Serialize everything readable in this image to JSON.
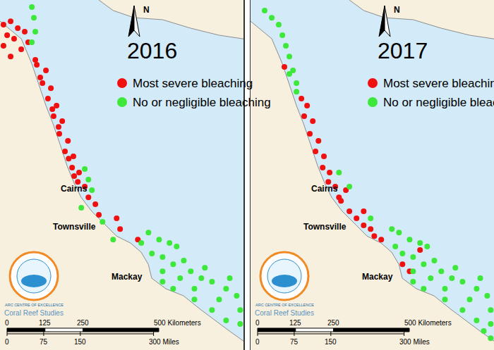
{
  "chart_data": [
    {
      "type": "scatter",
      "title": "2016",
      "xlim": [
        141,
        154.3
      ],
      "ylim": [
        -24.2,
        -8.2
      ],
      "tick_labels": false,
      "grid": false,
      "series": [
        {
          "name": "Most severe bleaching",
          "color": "#f01010",
          "marker": "circle",
          "points": [
            [
              141.19,
              -9.33
            ],
            [
              141.58,
              -9.17
            ],
            [
              141.97,
              -9.49
            ],
            [
              141.39,
              -9.81
            ],
            [
              141.77,
              -9.97
            ],
            [
              142.35,
              -9.65
            ],
            [
              141.19,
              -10.29
            ],
            [
              142.16,
              -10.45
            ],
            [
              142.54,
              -10.13
            ],
            [
              141.58,
              -10.78
            ],
            [
              142.93,
              -10.94
            ],
            [
              143.01,
              -11.16
            ],
            [
              143.51,
              -11.42
            ],
            [
              143.2,
              -11.74
            ],
            [
              143.32,
              -12.0
            ],
            [
              143.78,
              -12.23
            ],
            [
              143.62,
              -12.71
            ],
            [
              144.09,
              -13.03
            ],
            [
              143.86,
              -13.19
            ],
            [
              143.93,
              -13.51
            ],
            [
              144.4,
              -13.74
            ],
            [
              144.2,
              -14.0
            ],
            [
              144.24,
              -14.32
            ],
            [
              144.71,
              -14.64
            ],
            [
              144.55,
              -15.12
            ],
            [
              145.01,
              -15.35
            ],
            [
              144.75,
              -15.45
            ],
            [
              144.94,
              -15.86
            ],
            [
              145.32,
              -16.09
            ],
            [
              145.05,
              -16.25
            ],
            [
              145.25,
              -16.51
            ],
            [
              145.63,
              -16.73
            ],
            [
              145.83,
              -17.22
            ],
            [
              146.21,
              -17.54
            ],
            [
              146.4,
              -18.02
            ],
            [
              147.37,
              -18.18
            ],
            [
              147.56,
              -18.67
            ],
            [
              148.53,
              -19.15
            ]
          ]
        },
        {
          "name": "No or negligible bleaching",
          "color": "#3ee83a",
          "marker": "circle",
          "points": [
            [
              142.74,
              -8.52
            ],
            [
              142.85,
              -9.01
            ],
            [
              142.93,
              -9.65
            ],
            [
              142.74,
              -10.13
            ],
            [
              145.63,
              -15.93
            ],
            [
              145.83,
              -16.41
            ],
            [
              146.02,
              -16.89
            ],
            [
              145.44,
              -17.7
            ],
            [
              146.6,
              -18.34
            ],
            [
              147.18,
              -19.15
            ],
            [
              148.72,
              -19.31
            ],
            [
              149.11,
              -18.83
            ],
            [
              149.69,
              -19.15
            ],
            [
              150.26,
              -19.31
            ],
            [
              150.65,
              -19.47
            ],
            [
              149.3,
              -19.79
            ],
            [
              149.88,
              -19.95
            ],
            [
              150.46,
              -20.28
            ],
            [
              151.04,
              -20.11
            ],
            [
              151.42,
              -20.6
            ],
            [
              152.0,
              -20.92
            ],
            [
              152.58,
              -21.08
            ],
            [
              153.35,
              -21.4
            ],
            [
              153.93,
              -21.72
            ],
            [
              149.88,
              -21.08
            ],
            [
              150.46,
              -21.4
            ],
            [
              151.62,
              -21.89
            ],
            [
              152.58,
              -22.37
            ],
            [
              153.35,
              -22.85
            ],
            [
              154.12,
              -23.01
            ],
            [
              154.12,
              -22.37
            ],
            [
              152.97,
              -21.89
            ],
            [
              151.62,
              -21.4
            ],
            [
              150.84,
              -20.92
            ],
            [
              152.19,
              -20.44
            ],
            [
              153.55,
              -20.92
            ],
            [
              149.88,
              -20.6
            ]
          ]
        }
      ],
      "annotations": [
        {
          "text": "Cairns",
          "x": 145.05,
          "y": -16.83
        },
        {
          "text": "Townsville",
          "x": 145.05,
          "y": -18.57
        },
        {
          "text": "Mackay",
          "x": 147.94,
          "y": -20.85
        }
      ]
    },
    {
      "type": "scatter",
      "title": "2017",
      "xlim": [
        141,
        154.3
      ],
      "ylim": [
        -24.2,
        -8.2
      ],
      "tick_labels": false,
      "grid": false,
      "series": [
        {
          "name": "Most severe bleaching",
          "color": "#f01010",
          "marker": "circle",
          "points": [
            [
              142.85,
              -11.26
            ],
            [
              143.78,
              -12.71
            ],
            [
              144.09,
              -13.03
            ],
            [
              143.93,
              -13.51
            ],
            [
              144.4,
              -13.74
            ],
            [
              144.24,
              -14.32
            ],
            [
              144.71,
              -14.64
            ],
            [
              144.55,
              -15.12
            ],
            [
              145.01,
              -15.35
            ],
            [
              144.94,
              -15.86
            ],
            [
              145.32,
              -16.09
            ],
            [
              145.25,
              -16.51
            ],
            [
              145.63,
              -16.73
            ],
            [
              146.21,
              -16.89
            ],
            [
              145.83,
              -17.22
            ],
            [
              145.94,
              -17.38
            ],
            [
              146.4,
              -17.86
            ],
            [
              147.18,
              -17.86
            ],
            [
              146.79,
              -18.18
            ],
            [
              147.18,
              -18.5
            ],
            [
              147.56,
              -18.67
            ],
            [
              147.76,
              -18.99
            ],
            [
              148.14,
              -19.15
            ],
            [
              150.26,
              -19.63
            ],
            [
              149.3,
              -20.28
            ],
            [
              149.69,
              -20.6
            ]
          ]
        },
        {
          "name": "No or negligible bleaching",
          "color": "#3ee83a",
          "marker": "circle",
          "points": [
            [
              141.77,
              -8.68
            ],
            [
              142.16,
              -9.01
            ],
            [
              142.54,
              -9.33
            ],
            [
              142.74,
              -9.81
            ],
            [
              142.93,
              -10.29
            ],
            [
              143.12,
              -10.78
            ],
            [
              143.32,
              -11.42
            ],
            [
              143.12,
              -11.58
            ],
            [
              143.51,
              -12.0
            ],
            [
              143.51,
              -12.39
            ],
            [
              145.83,
              -16.09
            ],
            [
              146.4,
              -16.73
            ],
            [
              147.56,
              -18.18
            ],
            [
              148.72,
              -18.67
            ],
            [
              148.91,
              -19.47
            ],
            [
              149.11,
              -18.83
            ],
            [
              149.69,
              -19.15
            ],
            [
              150.26,
              -19.31
            ],
            [
              150.65,
              -19.47
            ],
            [
              149.3,
              -19.79
            ],
            [
              149.88,
              -19.95
            ],
            [
              150.46,
              -20.28
            ],
            [
              151.04,
              -20.11
            ],
            [
              151.42,
              -20.6
            ],
            [
              152.0,
              -20.92
            ],
            [
              152.58,
              -21.08
            ],
            [
              153.35,
              -21.4
            ],
            [
              153.93,
              -21.72
            ],
            [
              149.88,
              -21.08
            ],
            [
              150.46,
              -21.4
            ],
            [
              151.62,
              -21.89
            ],
            [
              152.58,
              -22.37
            ],
            [
              153.35,
              -22.85
            ],
            [
              154.12,
              -23.01
            ],
            [
              154.12,
              -22.37
            ],
            [
              152.97,
              -21.89
            ],
            [
              151.62,
              -21.4
            ],
            [
              150.84,
              -20.92
            ],
            [
              152.19,
              -20.44
            ],
            [
              153.55,
              -20.92
            ],
            [
              149.88,
              -20.6
            ],
            [
              153.74,
              -23.33
            ],
            [
              154.12,
              -23.66
            ]
          ]
        }
      ],
      "annotations": [
        {
          "text": "Cairns",
          "x": 145.05,
          "y": -16.83
        },
        {
          "text": "Townsville",
          "x": 145.05,
          "y": -18.57
        },
        {
          "text": "Mackay",
          "x": 147.94,
          "y": -20.85
        }
      ]
    }
  ],
  "map": {
    "north": "N",
    "logo": [
      "ARC CENTRE OF EXCELLENCE",
      "Coral Reef Studies"
    ],
    "scale": {
      "km_ticks": [
        0,
        125,
        250,
        {
          "value": 500,
          "label": "500 Kilometers"
        }
      ],
      "mile_ticks": [
        0,
        75,
        150,
        {
          "value": 300,
          "label": "300 Miles"
        }
      ]
    }
  }
}
